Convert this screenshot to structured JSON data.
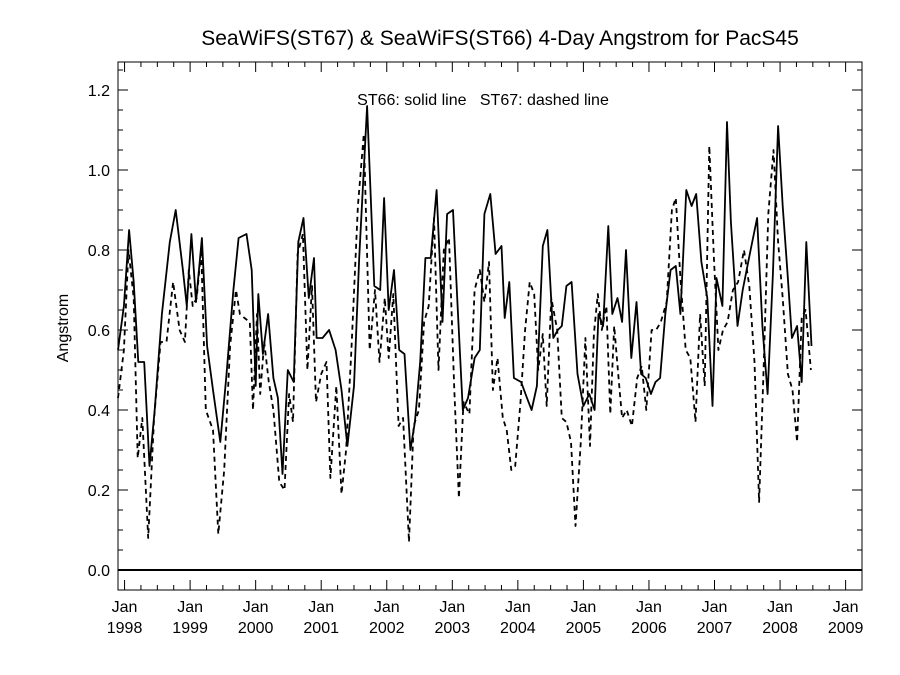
{
  "chart_data": {
    "type": "line",
    "title": "SeaWiFS(ST67) & SeaWiFS(ST66) 4-Day Angstrom for PacS45",
    "ylabel": "Angstrom",
    "xlabel": "",
    "annotation": "ST66: solid line   ST67: dashed line",
    "xlim": [
      1997.9,
      2009.25
    ],
    "ylim": [
      -0.05,
      1.27
    ],
    "y_ticks": [
      0.0,
      0.2,
      0.4,
      0.6,
      0.8,
      1.0,
      1.2
    ],
    "y_tick_labels": [
      "0.0",
      "0.2",
      "0.4",
      "0.6",
      "0.8",
      "1.0",
      "1.2"
    ],
    "x_ticks": [
      {
        "x": 1998,
        "month": "Jan",
        "year": "1998"
      },
      {
        "x": 1999,
        "month": "Jan",
        "year": "1999"
      },
      {
        "x": 2000,
        "month": "Jan",
        "year": "2000"
      },
      {
        "x": 2001,
        "month": "Jan",
        "year": "2001"
      },
      {
        "x": 2002,
        "month": "Jan",
        "year": "2002"
      },
      {
        "x": 2003,
        "month": "Jan",
        "year": "2003"
      },
      {
        "x": 2004,
        "month": "Jan",
        "year": "2004"
      },
      {
        "x": 2005,
        "month": "Jan",
        "year": "2005"
      },
      {
        "x": 2006,
        "month": "Jan",
        "year": "2006"
      },
      {
        "x": 2007,
        "month": "Jan",
        "year": "2007"
      },
      {
        "x": 2008,
        "month": "Jan",
        "year": "2008"
      },
      {
        "x": 2009,
        "month": "Jan",
        "year": "2009"
      }
    ],
    "reference_line_y": 0.0,
    "series": [
      {
        "name": "ST66",
        "style": "solid",
        "color": "#000000",
        "points": [
          [
            1997.9,
            0.55
          ],
          [
            1997.99,
            0.66
          ],
          [
            1998.07,
            0.85
          ],
          [
            1998.14,
            0.72
          ],
          [
            1998.21,
            0.52
          ],
          [
            1998.3,
            0.52
          ],
          [
            1998.38,
            0.26
          ],
          [
            1998.46,
            0.4
          ],
          [
            1998.57,
            0.64
          ],
          [
            1998.69,
            0.82
          ],
          [
            1998.78,
            0.9
          ],
          [
            1998.89,
            0.75
          ],
          [
            1998.95,
            0.66
          ],
          [
            1999.02,
            0.84
          ],
          [
            1999.09,
            0.67
          ],
          [
            1999.18,
            0.83
          ],
          [
            1999.26,
            0.56
          ],
          [
            1999.35,
            0.45
          ],
          [
            1999.46,
            0.32
          ],
          [
            1999.55,
            0.48
          ],
          [
            1999.66,
            0.7
          ],
          [
            1999.74,
            0.83
          ],
          [
            1999.86,
            0.84
          ],
          [
            1999.94,
            0.75
          ],
          [
            2000.0,
            0.46
          ],
          [
            2000.04,
            0.69
          ],
          [
            2000.11,
            0.54
          ],
          [
            2000.19,
            0.64
          ],
          [
            2000.27,
            0.48
          ],
          [
            2000.34,
            0.43
          ],
          [
            2000.41,
            0.24
          ],
          [
            2000.49,
            0.5
          ],
          [
            2000.58,
            0.47
          ],
          [
            2000.65,
            0.82
          ],
          [
            2000.73,
            0.88
          ],
          [
            2000.81,
            0.68
          ],
          [
            2000.89,
            0.78
          ],
          [
            2000.93,
            0.58
          ],
          [
            2001.02,
            0.58
          ],
          [
            2001.12,
            0.6
          ],
          [
            2001.22,
            0.55
          ],
          [
            2001.31,
            0.45
          ],
          [
            2001.4,
            0.31
          ],
          [
            2001.5,
            0.46
          ],
          [
            2001.58,
            0.78
          ],
          [
            2001.7,
            1.16
          ],
          [
            2001.81,
            0.71
          ],
          [
            2001.9,
            0.7
          ],
          [
            2001.96,
            0.93
          ],
          [
            2002.03,
            0.65
          ],
          [
            2002.11,
            0.75
          ],
          [
            2002.19,
            0.55
          ],
          [
            2002.27,
            0.54
          ],
          [
            2002.36,
            0.3
          ],
          [
            2002.43,
            0.37
          ],
          [
            2002.51,
            0.52
          ],
          [
            2002.59,
            0.78
          ],
          [
            2002.67,
            0.78
          ],
          [
            2002.76,
            0.95
          ],
          [
            2002.85,
            0.62
          ],
          [
            2002.92,
            0.89
          ],
          [
            2003.01,
            0.9
          ],
          [
            2003.08,
            0.66
          ],
          [
            2003.16,
            0.4
          ],
          [
            2003.24,
            0.43
          ],
          [
            2003.34,
            0.53
          ],
          [
            2003.42,
            0.55
          ],
          [
            2003.49,
            0.89
          ],
          [
            2003.58,
            0.94
          ],
          [
            2003.66,
            0.79
          ],
          [
            2003.75,
            0.81
          ],
          [
            2003.8,
            0.63
          ],
          [
            2003.87,
            0.72
          ],
          [
            2003.94,
            0.48
          ],
          [
            2004.05,
            0.47
          ],
          [
            2004.14,
            0.43
          ],
          [
            2004.21,
            0.4
          ],
          [
            2004.29,
            0.46
          ],
          [
            2004.38,
            0.81
          ],
          [
            2004.45,
            0.85
          ],
          [
            2004.54,
            0.58
          ],
          [
            2004.61,
            0.6
          ],
          [
            2004.67,
            0.61
          ],
          [
            2004.74,
            0.71
          ],
          [
            2004.82,
            0.72
          ],
          [
            2004.91,
            0.49
          ],
          [
            2005.0,
            0.41
          ],
          [
            2005.09,
            0.44
          ],
          [
            2005.17,
            0.4
          ],
          [
            2005.23,
            0.64
          ],
          [
            2005.3,
            0.61
          ],
          [
            2005.38,
            0.86
          ],
          [
            2005.44,
            0.64
          ],
          [
            2005.52,
            0.68
          ],
          [
            2005.59,
            0.62
          ],
          [
            2005.65,
            0.8
          ],
          [
            2005.73,
            0.53
          ],
          [
            2005.81,
            0.67
          ],
          [
            2005.88,
            0.49
          ],
          [
            2005.95,
            0.48
          ],
          [
            2006.03,
            0.44
          ],
          [
            2006.1,
            0.47
          ],
          [
            2006.17,
            0.48
          ],
          [
            2006.25,
            0.64
          ],
          [
            2006.33,
            0.75
          ],
          [
            2006.41,
            0.76
          ],
          [
            2006.48,
            0.64
          ],
          [
            2006.57,
            0.95
          ],
          [
            2006.65,
            0.91
          ],
          [
            2006.72,
            0.94
          ],
          [
            2006.8,
            0.77
          ],
          [
            2006.89,
            0.68
          ],
          [
            2006.97,
            0.41
          ],
          [
            2007.03,
            0.73
          ],
          [
            2007.12,
            0.66
          ],
          [
            2007.19,
            1.12
          ],
          [
            2007.25,
            0.87
          ],
          [
            2007.35,
            0.61
          ],
          [
            2007.43,
            0.7
          ],
          [
            2007.55,
            0.8
          ],
          [
            2007.65,
            0.88
          ],
          [
            2007.73,
            0.61
          ],
          [
            2007.81,
            0.44
          ],
          [
            2007.89,
            0.74
          ],
          [
            2007.97,
            1.11
          ],
          [
            2008.04,
            0.91
          ],
          [
            2008.11,
            0.75
          ],
          [
            2008.18,
            0.58
          ],
          [
            2008.26,
            0.61
          ],
          [
            2008.33,
            0.47
          ],
          [
            2008.4,
            0.82
          ],
          [
            2008.48,
            0.56
          ]
        ]
      },
      {
        "name": "ST67",
        "style": "dashed",
        "color": "#000000",
        "points": [
          [
            1997.9,
            0.43
          ],
          [
            1997.99,
            0.55
          ],
          [
            1998.06,
            0.8
          ],
          [
            1998.14,
            0.68
          ],
          [
            1998.2,
            0.28
          ],
          [
            1998.27,
            0.38
          ],
          [
            1998.36,
            0.08
          ],
          [
            1998.45,
            0.38
          ],
          [
            1998.55,
            0.57
          ],
          [
            1998.64,
            0.57
          ],
          [
            1998.74,
            0.72
          ],
          [
            1998.84,
            0.6
          ],
          [
            1998.92,
            0.57
          ],
          [
            1998.98,
            0.75
          ],
          [
            1999.04,
            0.66
          ],
          [
            1999.1,
            0.68
          ],
          [
            1999.17,
            0.8
          ],
          [
            1999.24,
            0.4
          ],
          [
            1999.35,
            0.35
          ],
          [
            1999.43,
            0.09
          ],
          [
            1999.52,
            0.25
          ],
          [
            1999.61,
            0.56
          ],
          [
            1999.7,
            0.7
          ],
          [
            1999.76,
            0.64
          ],
          [
            1999.83,
            0.63
          ],
          [
            1999.91,
            0.62
          ],
          [
            1999.96,
            0.4
          ],
          [
            2000.02,
            0.64
          ],
          [
            2000.07,
            0.44
          ],
          [
            2000.13,
            0.57
          ],
          [
            2000.2,
            0.47
          ],
          [
            2000.27,
            0.4
          ],
          [
            2000.36,
            0.22
          ],
          [
            2000.44,
            0.2
          ],
          [
            2000.51,
            0.44
          ],
          [
            2000.57,
            0.37
          ],
          [
            2000.64,
            0.79
          ],
          [
            2000.72,
            0.84
          ],
          [
            2000.79,
            0.5
          ],
          [
            2000.86,
            0.71
          ],
          [
            2000.92,
            0.42
          ],
          [
            2001.0,
            0.49
          ],
          [
            2001.08,
            0.52
          ],
          [
            2001.14,
            0.23
          ],
          [
            2001.23,
            0.46
          ],
          [
            2001.31,
            0.19
          ],
          [
            2001.38,
            0.3
          ],
          [
            2001.46,
            0.55
          ],
          [
            2001.56,
            0.91
          ],
          [
            2001.65,
            1.09
          ],
          [
            2001.74,
            0.55
          ],
          [
            2001.82,
            0.7
          ],
          [
            2001.89,
            0.52
          ],
          [
            2001.97,
            0.68
          ],
          [
            2002.03,
            0.53
          ],
          [
            2002.1,
            0.69
          ],
          [
            2002.18,
            0.36
          ],
          [
            2002.25,
            0.38
          ],
          [
            2002.34,
            0.07
          ],
          [
            2002.41,
            0.36
          ],
          [
            2002.49,
            0.4
          ],
          [
            2002.57,
            0.62
          ],
          [
            2002.64,
            0.66
          ],
          [
            2002.72,
            0.88
          ],
          [
            2002.79,
            0.5
          ],
          [
            2002.87,
            0.8
          ],
          [
            2002.95,
            0.83
          ],
          [
            2003.03,
            0.45
          ],
          [
            2003.1,
            0.18
          ],
          [
            2003.17,
            0.42
          ],
          [
            2003.26,
            0.39
          ],
          [
            2003.34,
            0.7
          ],
          [
            2003.42,
            0.75
          ],
          [
            2003.49,
            0.67
          ],
          [
            2003.56,
            0.77
          ],
          [
            2003.62,
            0.45
          ],
          [
            2003.69,
            0.53
          ],
          [
            2003.77,
            0.38
          ],
          [
            2003.83,
            0.35
          ],
          [
            2003.9,
            0.25
          ],
          [
            2003.96,
            0.26
          ],
          [
            2004.04,
            0.42
          ],
          [
            2004.11,
            0.6
          ],
          [
            2004.18,
            0.72
          ],
          [
            2004.25,
            0.69
          ],
          [
            2004.31,
            0.5
          ],
          [
            2004.38,
            0.59
          ],
          [
            2004.44,
            0.41
          ],
          [
            2004.51,
            0.68
          ],
          [
            2004.6,
            0.6
          ],
          [
            2004.67,
            0.38
          ],
          [
            2004.74,
            0.37
          ],
          [
            2004.81,
            0.32
          ],
          [
            2004.88,
            0.11
          ],
          [
            2004.96,
            0.32
          ],
          [
            2005.03,
            0.58
          ],
          [
            2005.1,
            0.31
          ],
          [
            2005.16,
            0.59
          ],
          [
            2005.22,
            0.69
          ],
          [
            2005.28,
            0.6
          ],
          [
            2005.35,
            0.66
          ],
          [
            2005.41,
            0.39
          ],
          [
            2005.47,
            0.61
          ],
          [
            2005.53,
            0.49
          ],
          [
            2005.59,
            0.38
          ],
          [
            2005.66,
            0.4
          ],
          [
            2005.74,
            0.36
          ],
          [
            2005.82,
            0.48
          ],
          [
            2005.89,
            0.51
          ],
          [
            2005.96,
            0.4
          ],
          [
            2006.04,
            0.6
          ],
          [
            2006.11,
            0.6
          ],
          [
            2006.18,
            0.62
          ],
          [
            2006.27,
            0.67
          ],
          [
            2006.35,
            0.9
          ],
          [
            2006.41,
            0.93
          ],
          [
            2006.48,
            0.73
          ],
          [
            2006.56,
            0.55
          ],
          [
            2006.63,
            0.53
          ],
          [
            2006.71,
            0.37
          ],
          [
            2006.78,
            0.64
          ],
          [
            2006.85,
            0.46
          ],
          [
            2006.92,
            1.06
          ],
          [
            2006.99,
            0.78
          ],
          [
            2007.06,
            0.55
          ],
          [
            2007.13,
            0.6
          ],
          [
            2007.2,
            0.62
          ],
          [
            2007.28,
            0.7
          ],
          [
            2007.36,
            0.72
          ],
          [
            2007.45,
            0.8
          ],
          [
            2007.53,
            0.71
          ],
          [
            2007.61,
            0.52
          ],
          [
            2007.68,
            0.17
          ],
          [
            2007.75,
            0.51
          ],
          [
            2007.82,
            0.89
          ],
          [
            2007.9,
            1.05
          ],
          [
            2007.97,
            0.82
          ],
          [
            2008.04,
            0.68
          ],
          [
            2008.12,
            0.49
          ],
          [
            2008.19,
            0.45
          ],
          [
            2008.26,
            0.32
          ],
          [
            2008.33,
            0.63
          ],
          [
            2008.39,
            0.65
          ],
          [
            2008.47,
            0.5
          ]
        ]
      }
    ]
  }
}
